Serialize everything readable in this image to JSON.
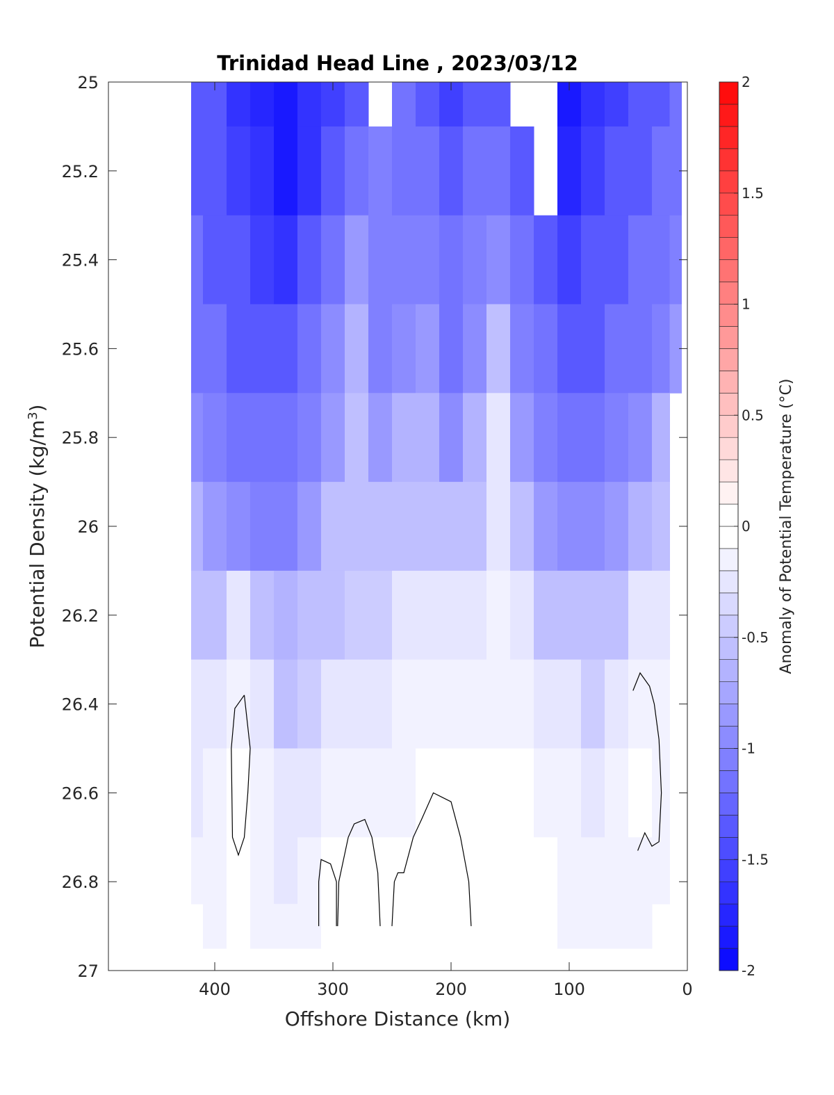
{
  "chart_data": {
    "type": "heatmap",
    "subtype": "filled-contour",
    "title": "Trinidad Head Line , 2023/03/12",
    "xlabel": "Offshore Distance (km)",
    "ylabel_base": "Potential Density (kg/m",
    "ylabel_sup": "3",
    "ylabel_end": ")",
    "x_direction": "reversed",
    "y_direction": "reversed",
    "xlim": [
      0,
      490
    ],
    "ylim": [
      25,
      27
    ],
    "x_ticks": [
      400,
      300,
      200,
      100,
      0
    ],
    "x_tick_labels": [
      "400",
      "300",
      "200",
      "100",
      "0"
    ],
    "y_ticks": [
      25,
      25.2,
      25.4,
      25.6,
      25.8,
      26,
      26.2,
      26.4,
      26.6,
      26.8,
      27
    ],
    "y_tick_labels": [
      "25",
      "25.2",
      "25.4",
      "25.6",
      "25.8",
      "26",
      "26.2",
      "26.4",
      "26.6",
      "26.8",
      "27"
    ],
    "colorbar": {
      "label": "Anomaly of Potential Temperature (°C)",
      "range": [
        -2,
        2
      ],
      "step": 0.1,
      "ticks": [
        2,
        1.5,
        1,
        0.5,
        0,
        -0.5,
        -1,
        -1.5,
        -2
      ],
      "tick_labels": [
        "2",
        "1.5",
        "1",
        "0.5",
        "0",
        "-0.5",
        "-1",
        "-1.5",
        "-2"
      ],
      "colormap": "blue-white-red",
      "cold_color": "#0000ff",
      "warm_color": "#ff0000",
      "neutral_color": "#ffffff"
    },
    "station_x": [
      420,
      400,
      380,
      360,
      340,
      320,
      300,
      280,
      260,
      240,
      220,
      200,
      180,
      160,
      140,
      120,
      100,
      80,
      60,
      40,
      20,
      10
    ],
    "density_y": [
      25.0,
      25.2,
      25.4,
      25.6,
      25.8,
      26.0,
      26.2,
      26.4,
      26.6,
      26.8,
      26.9
    ],
    "anomaly": [
      [
        -1.3,
        -1.4,
        -1.6,
        -1.7,
        -1.9,
        -1.6,
        -1.5,
        -1.3,
        null,
        -1.2,
        -1.4,
        -1.5,
        -1.4,
        -1.3,
        null,
        null,
        -1.8,
        -1.6,
        -1.5,
        -1.4,
        -1.3,
        -1.2
      ],
      [
        -1.3,
        -1.4,
        -1.5,
        -1.6,
        -1.8,
        -1.6,
        -1.4,
        -1.2,
        -1.0,
        -1.1,
        -1.2,
        -1.3,
        -1.2,
        -1.1,
        -1.3,
        null,
        -1.7,
        -1.5,
        -1.4,
        -1.3,
        -1.2,
        -1.1
      ],
      [
        -1.2,
        -1.3,
        -1.4,
        -1.5,
        -1.6,
        -1.4,
        -1.1,
        -0.8,
        -1.0,
        -1.0,
        -1.0,
        -1.2,
        -1.0,
        -0.9,
        -1.2,
        -1.4,
        -1.5,
        -1.4,
        -1.3,
        -1.2,
        -1.1,
        -1.0
      ],
      [
        -1.1,
        -1.2,
        -1.3,
        -1.4,
        -1.4,
        -1.2,
        -0.9,
        -0.7,
        -1.0,
        -0.9,
        -0.8,
        -1.1,
        -0.9,
        -0.6,
        -1.0,
        -1.2,
        -1.3,
        -1.3,
        -1.2,
        -1.1,
        -1.0,
        -0.8
      ],
      [
        -0.9,
        -1.0,
        -1.1,
        -1.2,
        -1.2,
        -1.0,
        -0.8,
        -0.6,
        -0.8,
        -0.7,
        -0.7,
        -0.9,
        -0.7,
        -0.3,
        -0.8,
        -1.0,
        -1.1,
        -1.1,
        -1.0,
        -0.9,
        -0.7,
        null
      ],
      [
        -0.7,
        -0.8,
        -0.9,
        -1.0,
        -1.0,
        -0.8,
        -0.6,
        -0.5,
        -0.6,
        -0.5,
        -0.5,
        -0.6,
        -0.5,
        -0.2,
        -0.6,
        -0.8,
        -0.9,
        -0.9,
        -0.8,
        -0.7,
        -0.5,
        null
      ],
      [
        -0.5,
        -0.5,
        -0.3,
        -0.6,
        -0.7,
        -0.6,
        -0.5,
        -0.4,
        -0.4,
        -0.3,
        -0.3,
        -0.3,
        -0.2,
        -0.1,
        -0.3,
        -0.5,
        -0.6,
        -0.6,
        -0.5,
        -0.3,
        -0.2,
        null
      ],
      [
        -0.3,
        -0.2,
        -0.1,
        -0.3,
        -0.5,
        -0.4,
        -0.3,
        -0.3,
        -0.2,
        -0.1,
        -0.1,
        -0.1,
        -0.1,
        -0.1,
        -0.1,
        -0.2,
        -0.3,
        -0.4,
        -0.3,
        -0.1,
        -0.1,
        null
      ],
      [
        -0.2,
        -0.1,
        0.0,
        -0.1,
        -0.3,
        -0.2,
        -0.1,
        -0.1,
        -0.1,
        -0.1,
        0.0,
        0.0,
        0.0,
        0.0,
        0.0,
        -0.1,
        -0.1,
        -0.2,
        -0.1,
        0.0,
        -0.1,
        null
      ],
      [
        -0.1,
        -0.1,
        0.0,
        -0.1,
        -0.2,
        -0.1,
        0.0,
        0.0,
        0.0,
        0.0,
        0.05,
        0.0,
        0.0,
        0.05,
        0.0,
        0.0,
        -0.1,
        -0.1,
        -0.1,
        -0.1,
        -0.1,
        null
      ],
      [
        null,
        -0.1,
        0.0,
        -0.1,
        -0.1,
        -0.1,
        0.0,
        0.0,
        0.0,
        0.0,
        0.05,
        0.0,
        0.0,
        0.0,
        0.0,
        0.0,
        -0.1,
        -0.1,
        -0.1,
        -0.1,
        null,
        null
      ]
    ],
    "zero_contours": [
      [
        [
          375,
          26.38
        ],
        [
          383,
          26.41
        ],
        [
          386,
          26.5
        ],
        [
          385,
          26.7
        ],
        [
          380,
          26.74
        ],
        [
          375,
          26.7
        ],
        [
          372,
          26.6
        ],
        [
          370,
          26.5
        ],
        [
          375,
          26.38
        ]
      ],
      [
        [
          297,
          26.9
        ],
        [
          297,
          26.8
        ],
        [
          302,
          26.76
        ],
        [
          310,
          26.75
        ],
        [
          312,
          26.8
        ],
        [
          312,
          26.9
        ]
      ],
      [
        [
          260,
          26.9
        ],
        [
          262,
          26.78
        ],
        [
          267,
          26.7
        ],
        [
          273,
          26.66
        ],
        [
          282,
          26.67
        ],
        [
          287,
          26.7
        ],
        [
          295,
          26.8
        ],
        [
          296,
          26.9
        ]
      ],
      [
        [
          183,
          26.9
        ],
        [
          185,
          26.8
        ],
        [
          192,
          26.7
        ],
        [
          200,
          26.62
        ],
        [
          215,
          26.6
        ],
        [
          225,
          26.66
        ],
        [
          232,
          26.7
        ],
        [
          240,
          26.78
        ],
        [
          245,
          26.78
        ],
        [
          248,
          26.8
        ],
        [
          250,
          26.9
        ]
      ],
      [
        [
          42,
          26.73
        ],
        [
          36,
          26.69
        ],
        [
          30,
          26.72
        ],
        [
          24,
          26.71
        ],
        [
          22,
          26.6
        ],
        [
          24,
          26.48
        ],
        [
          28,
          26.4
        ],
        [
          32,
          26.36
        ],
        [
          40,
          26.33
        ],
        [
          46,
          26.37
        ]
      ]
    ]
  }
}
